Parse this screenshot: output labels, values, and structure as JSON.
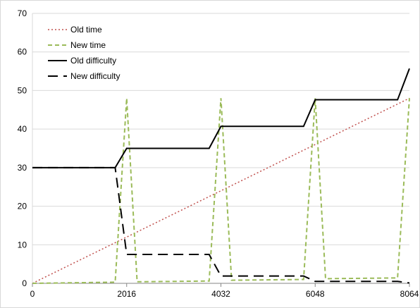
{
  "chart_data": {
    "type": "line",
    "xlim": [
      0,
      8064
    ],
    "ylim": [
      0,
      70
    ],
    "y_ticks": [
      0,
      10,
      20,
      30,
      40,
      50,
      60,
      70
    ],
    "x_ticks": [
      0,
      2016,
      4032,
      6048,
      8064
    ],
    "x_tick_labels": [
      "0",
      "2016",
      "4032",
      "6048",
      "8064"
    ],
    "y_tick_labels": [
      "0",
      "10",
      "20",
      "30",
      "40",
      "50",
      "60",
      "70"
    ],
    "grid": "horizontal",
    "legend_position": "top-left",
    "series": [
      {
        "name": "Old time",
        "color": "#c0504d",
        "style": "dotted",
        "x": [
          0,
          8064
        ],
        "y": [
          0,
          48
        ]
      },
      {
        "name": "New time",
        "color": "#9bbb59",
        "style": "dashed",
        "x": [
          0,
          1770,
          2016,
          2240,
          3780,
          4032,
          4260,
          5800,
          6048,
          6270,
          7810,
          8064
        ],
        "y": [
          0,
          0.3,
          48,
          0.4,
          0.6,
          48,
          0.8,
          1.0,
          48,
          1.2,
          1.4,
          48
        ]
      },
      {
        "name": "Old difficulty",
        "color": "#000000",
        "style": "solid",
        "x": [
          0,
          1770,
          2016,
          3780,
          4032,
          5800,
          6048,
          7810,
          8064
        ],
        "y": [
          30,
          30,
          35,
          35,
          40.7,
          40.7,
          47.6,
          47.6,
          55.7
        ]
      },
      {
        "name": "New difficulty",
        "color": "#000000",
        "style": "longdash",
        "x": [
          0,
          1770,
          2016,
          3780,
          4032,
          5800,
          6048,
          7810,
          8064
        ],
        "y": [
          30,
          30,
          7.5,
          7.5,
          1.9,
          1.9,
          0.5,
          0.5,
          0.1
        ]
      }
    ]
  }
}
